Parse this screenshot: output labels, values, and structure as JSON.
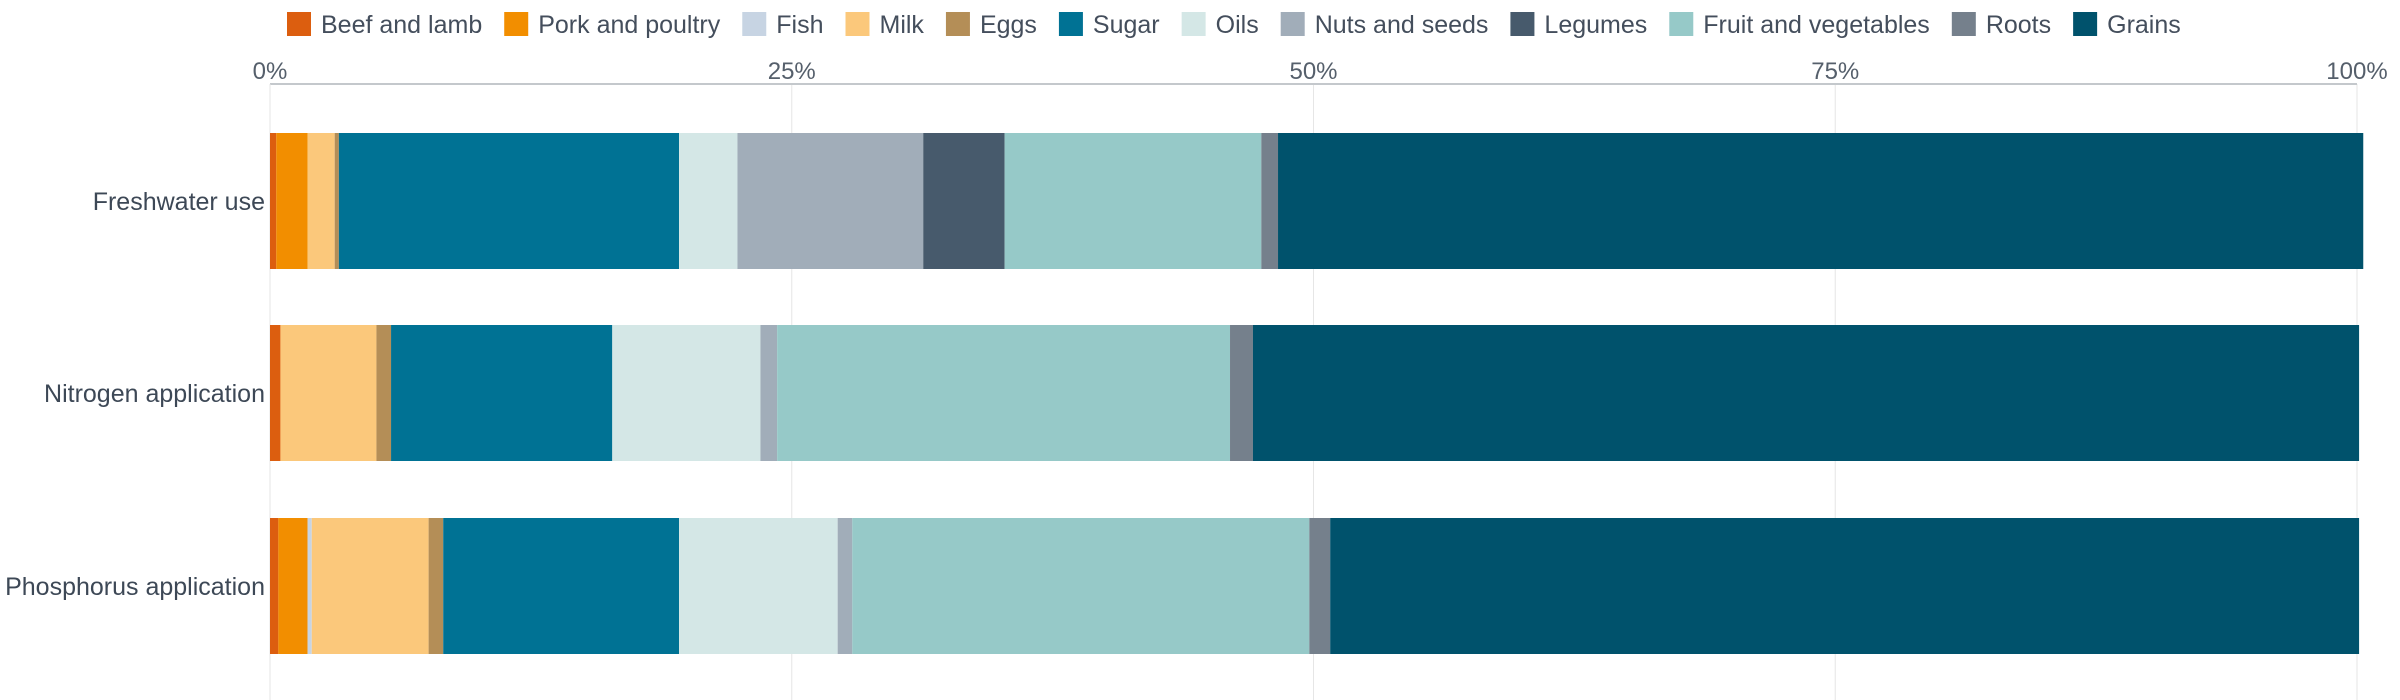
{
  "chart_data": {
    "type": "bar",
    "orientation": "horizontal",
    "stacked": true,
    "normalized": true,
    "title": "",
    "xlabel": "",
    "ylabel": "",
    "xlim": [
      0,
      100
    ],
    "x_ticks": [
      {
        "value": 0,
        "label": "0%"
      },
      {
        "value": 25,
        "label": "25%"
      },
      {
        "value": 50,
        "label": "50%"
      },
      {
        "value": 75,
        "label": "75%"
      },
      {
        "value": 100,
        "label": "100%"
      }
    ],
    "grid": true,
    "legend_position": "top",
    "categories": [
      "Freshwater use",
      "Nitrogen application",
      "Phosphorus application"
    ],
    "series": [
      {
        "name": "Beef and lamb",
        "color": "#dc5e0f",
        "values": [
          0.3,
          0.5,
          0.4
        ]
      },
      {
        "name": "Pork and poultry",
        "color": "#f28e00",
        "values": [
          1.5,
          0.0,
          1.4
        ]
      },
      {
        "name": "Fish",
        "color": "#c7d4e3",
        "values": [
          0.0,
          0.0,
          0.2
        ]
      },
      {
        "name": "Milk",
        "color": "#fbc87b",
        "values": [
          1.3,
          4.6,
          5.6
        ]
      },
      {
        "name": "Eggs",
        "color": "#b48e57",
        "values": [
          0.2,
          0.7,
          0.7
        ]
      },
      {
        "name": "Sugar",
        "color": "#007294",
        "values": [
          16.3,
          10.6,
          11.3
        ]
      },
      {
        "name": "Oils",
        "color": "#d4e7e6",
        "values": [
          2.8,
          7.1,
          7.6
        ]
      },
      {
        "name": "Nuts and seeds",
        "color": "#a1adb9",
        "values": [
          8.9,
          0.8,
          0.7
        ]
      },
      {
        "name": "Legumes",
        "color": "#475a6c",
        "values": [
          3.9,
          0.0,
          0.0
        ]
      },
      {
        "name": "Fruit and vegetables",
        "color": "#96c9c8",
        "values": [
          12.3,
          21.7,
          21.9
        ]
      },
      {
        "name": "Roots",
        "color": "#75808c",
        "values": [
          0.8,
          1.1,
          1.0
        ]
      },
      {
        "name": "Grains",
        "color": "#00526c",
        "values": [
          52.0,
          53.0,
          49.3
        ]
      }
    ]
  }
}
